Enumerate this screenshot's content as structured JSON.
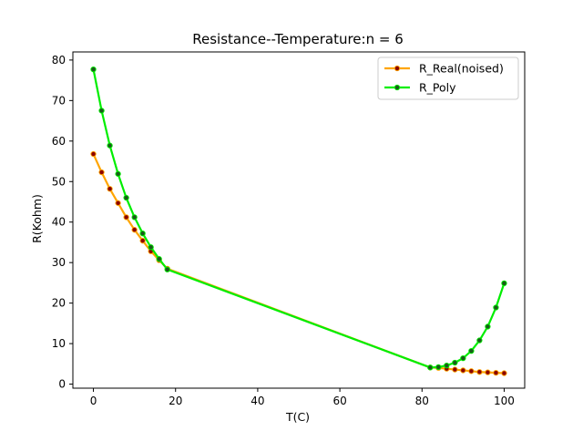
{
  "chart_data": {
    "type": "line",
    "title": "Resistance--Temperature:n = 6",
    "xlabel": "T(C)",
    "ylabel": "R(Kohm)",
    "xlim": [
      -5,
      105
    ],
    "ylim": [
      -1,
      82
    ],
    "xticks": [
      0,
      20,
      40,
      60,
      80,
      100
    ],
    "yticks": [
      0,
      10,
      20,
      30,
      40,
      50,
      60,
      70,
      80
    ],
    "legend_position": "upper right",
    "grid": false,
    "series": [
      {
        "name": "R_Real(noised)",
        "color": "#ffa500",
        "marker_face": "#8b0000",
        "x": [
          0,
          2,
          4,
          6,
          8,
          10,
          12,
          14,
          16,
          18,
          82,
          84,
          86,
          88,
          90,
          92,
          94,
          96,
          98,
          100
        ],
        "y": [
          56.8,
          52.3,
          48.2,
          44.7,
          41.2,
          38.1,
          35.4,
          32.8,
          30.6,
          28.5,
          4.1,
          4.0,
          3.8,
          3.6,
          3.4,
          3.2,
          3.0,
          2.9,
          2.8,
          2.7
        ]
      },
      {
        "name": "R_Poly",
        "color": "#00ee00",
        "marker_face": "#1a5c1a",
        "x": [
          0,
          2,
          4,
          6,
          8,
          10,
          12,
          14,
          16,
          18,
          82,
          84,
          86,
          88,
          90,
          92,
          94,
          96,
          98,
          100
        ],
        "y": [
          77.7,
          67.5,
          58.9,
          51.9,
          46.0,
          41.2,
          37.2,
          33.8,
          30.9,
          28.3,
          4.1,
          4.2,
          4.6,
          5.3,
          6.4,
          8.2,
          10.8,
          14.2,
          18.9,
          24.9
        ]
      }
    ]
  }
}
